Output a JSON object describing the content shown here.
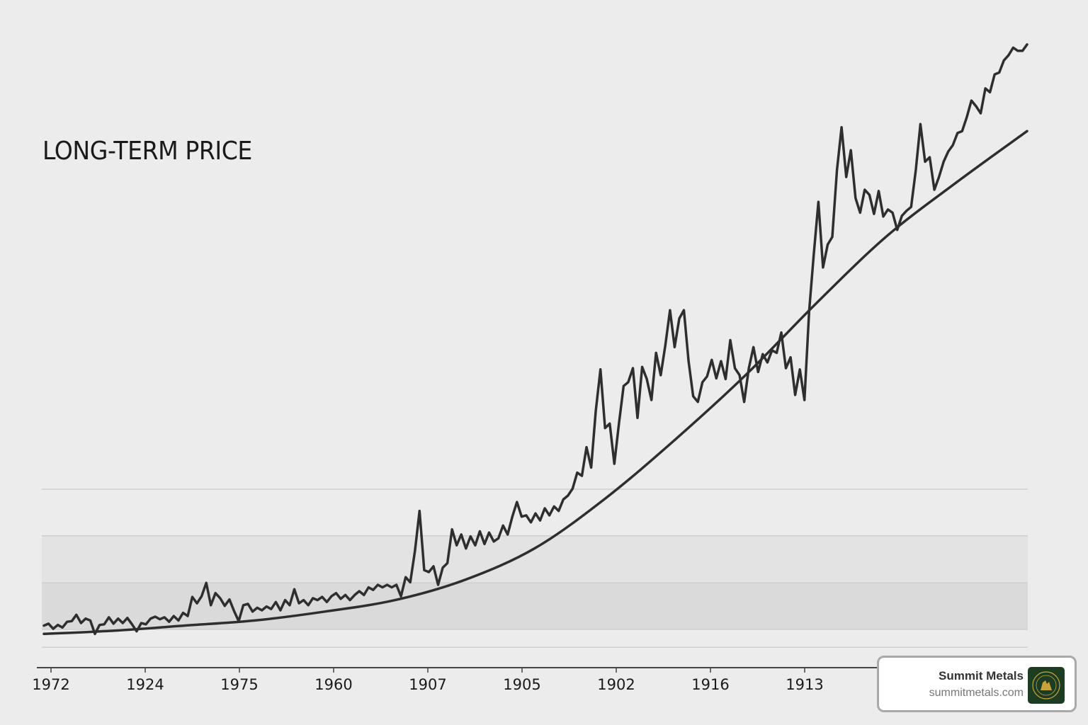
{
  "chart_data": {
    "type": "line",
    "title": "LONG-TERM PRICE",
    "xlabel": "",
    "ylabel": "",
    "x_tick_labels": [
      "1972",
      "1924",
      "1975",
      "1960",
      "1907",
      "1905",
      "1902",
      "1916",
      "1913"
    ],
    "ylim": [
      0,
      100
    ],
    "grid": true,
    "gridlines_y": [
      3.2,
      6.0,
      13.3,
      20.7,
      28.0
    ],
    "series": [
      {
        "style": "jagged",
        "values": [
          6.6,
          6.9,
          6.1,
          6.7,
          6.3,
          7.2,
          7.3,
          8.3,
          7.0,
          7.7,
          7.4,
          5.3,
          6.7,
          6.8,
          7.9,
          6.9,
          7.7,
          7.0,
          7.8,
          6.8,
          5.7,
          7.0,
          6.8,
          7.7,
          8.0,
          7.6,
          7.9,
          7.2,
          8.1,
          7.4,
          8.6,
          8.1,
          11.1,
          10.1,
          11.2,
          13.3,
          9.8,
          11.7,
          10.9,
          9.7,
          10.7,
          8.9,
          7.3,
          9.8,
          10.0,
          8.8,
          9.4,
          9.0,
          9.6,
          9.2,
          10.3,
          9.0,
          10.6,
          9.8,
          12.3,
          10.1,
          10.6,
          9.8,
          10.9,
          10.6,
          11.1,
          10.3,
          11.2,
          11.7,
          10.8,
          11.4,
          10.6,
          11.4,
          12.0,
          11.4,
          12.6,
          12.2,
          13.0,
          12.6,
          13.0,
          12.6,
          13.0,
          11.2,
          14.2,
          13.4,
          18.3,
          24.6,
          15.3,
          15.0,
          15.9,
          13.0,
          15.7,
          16.4,
          21.7,
          19.2,
          20.9,
          18.7,
          20.6,
          19.2,
          21.4,
          19.4,
          21.2,
          19.8,
          20.3,
          22.3,
          20.9,
          23.7,
          26.0,
          23.7,
          23.9,
          22.8,
          24.2,
          23.1,
          25.0,
          23.9,
          25.3,
          24.6,
          26.4,
          27.0,
          28.1,
          30.6,
          30.1,
          34.6,
          31.4,
          40.3,
          46.8,
          37.6,
          38.3,
          32.0,
          38.3,
          44.2,
          44.8,
          47.0,
          39.2,
          47.2,
          45.3,
          42.0,
          49.4,
          45.9,
          50.6,
          56.1,
          50.3,
          54.8,
          56.1,
          48.1,
          42.6,
          41.7,
          44.8,
          45.7,
          48.3,
          45.4,
          48.1,
          45.3,
          51.4,
          47.0,
          45.9,
          41.7,
          47.0,
          50.3,
          46.4,
          49.2,
          47.9,
          49.8,
          49.4,
          52.6,
          47.0,
          48.7,
          42.8,
          46.8,
          42.0,
          55.9,
          64.8,
          73.1,
          62.8,
          66.4,
          67.6,
          78.1,
          84.8,
          77.0,
          81.2,
          73.7,
          71.4,
          75.0,
          74.2,
          71.2,
          74.8,
          70.8,
          71.9,
          71.4,
          68.7,
          70.9,
          71.7,
          72.3,
          78.1,
          85.3,
          79.4,
          80.1,
          75.0,
          77.0,
          79.4,
          81.0,
          82.0,
          83.9,
          84.2,
          86.4,
          89.0,
          88.1,
          87.0,
          90.9,
          90.3,
          93.1,
          93.4,
          95.3,
          96.1,
          97.3,
          96.8,
          96.8,
          97.8
        ]
      },
      {
        "style": "trend",
        "values": [
          5.3,
          5.8,
          6.6,
          7.4,
          8.8,
          10.6,
          13.8,
          18.8,
          26.6,
          35.9,
          46.0,
          57.2,
          67.7,
          76.2,
          84.2
        ]
      }
    ],
    "colors": {
      "line": "#2e2e2e",
      "background": "#ececec",
      "band_light": "#e3e3e3",
      "band_dark": "#dadada",
      "grid": "#cfcfcf"
    }
  },
  "badge": {
    "name": "Summit Metals",
    "url": "summitmetals.com",
    "logo_text": "SUMMIT METALS",
    "logo_color": "#1c3d22",
    "logo_accent": "#c9a33a"
  }
}
